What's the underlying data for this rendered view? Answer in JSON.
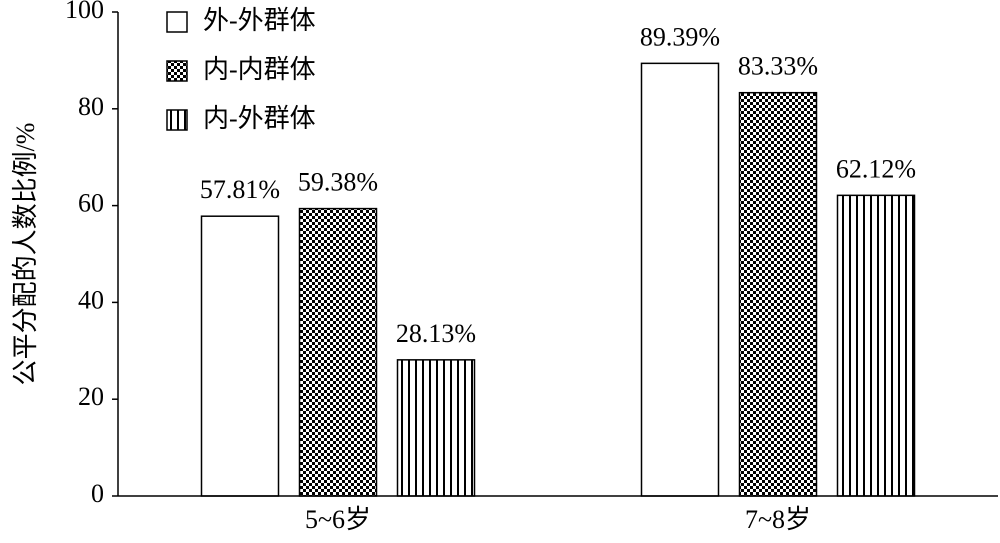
{
  "chart_data": {
    "type": "bar",
    "y_label": "公平分配的人数比例/%",
    "categories": [
      "5~6岁",
      "7~8岁"
    ],
    "series": [
      {
        "name": "外-外群体",
        "color": "#000000",
        "pattern": "none",
        "values": [
          57.81,
          89.39
        ],
        "value_labels": [
          "57.81%",
          "89.39%"
        ]
      },
      {
        "name": "内-内群体",
        "color": "#000000",
        "pattern": "checker",
        "values": [
          59.38,
          83.33
        ],
        "value_labels": [
          "59.38%",
          "83.33%"
        ]
      },
      {
        "name": "内-外群体",
        "color": "#000000",
        "pattern": "vertical-stripes",
        "values": [
          28.13,
          62.12
        ],
        "value_labels": [
          "28.13%",
          "62.12%"
        ]
      }
    ],
    "ylim": [
      0,
      100
    ],
    "yticks": [
      0,
      20,
      40,
      60,
      80,
      100
    ],
    "grid": false,
    "legend": "upper left"
  }
}
